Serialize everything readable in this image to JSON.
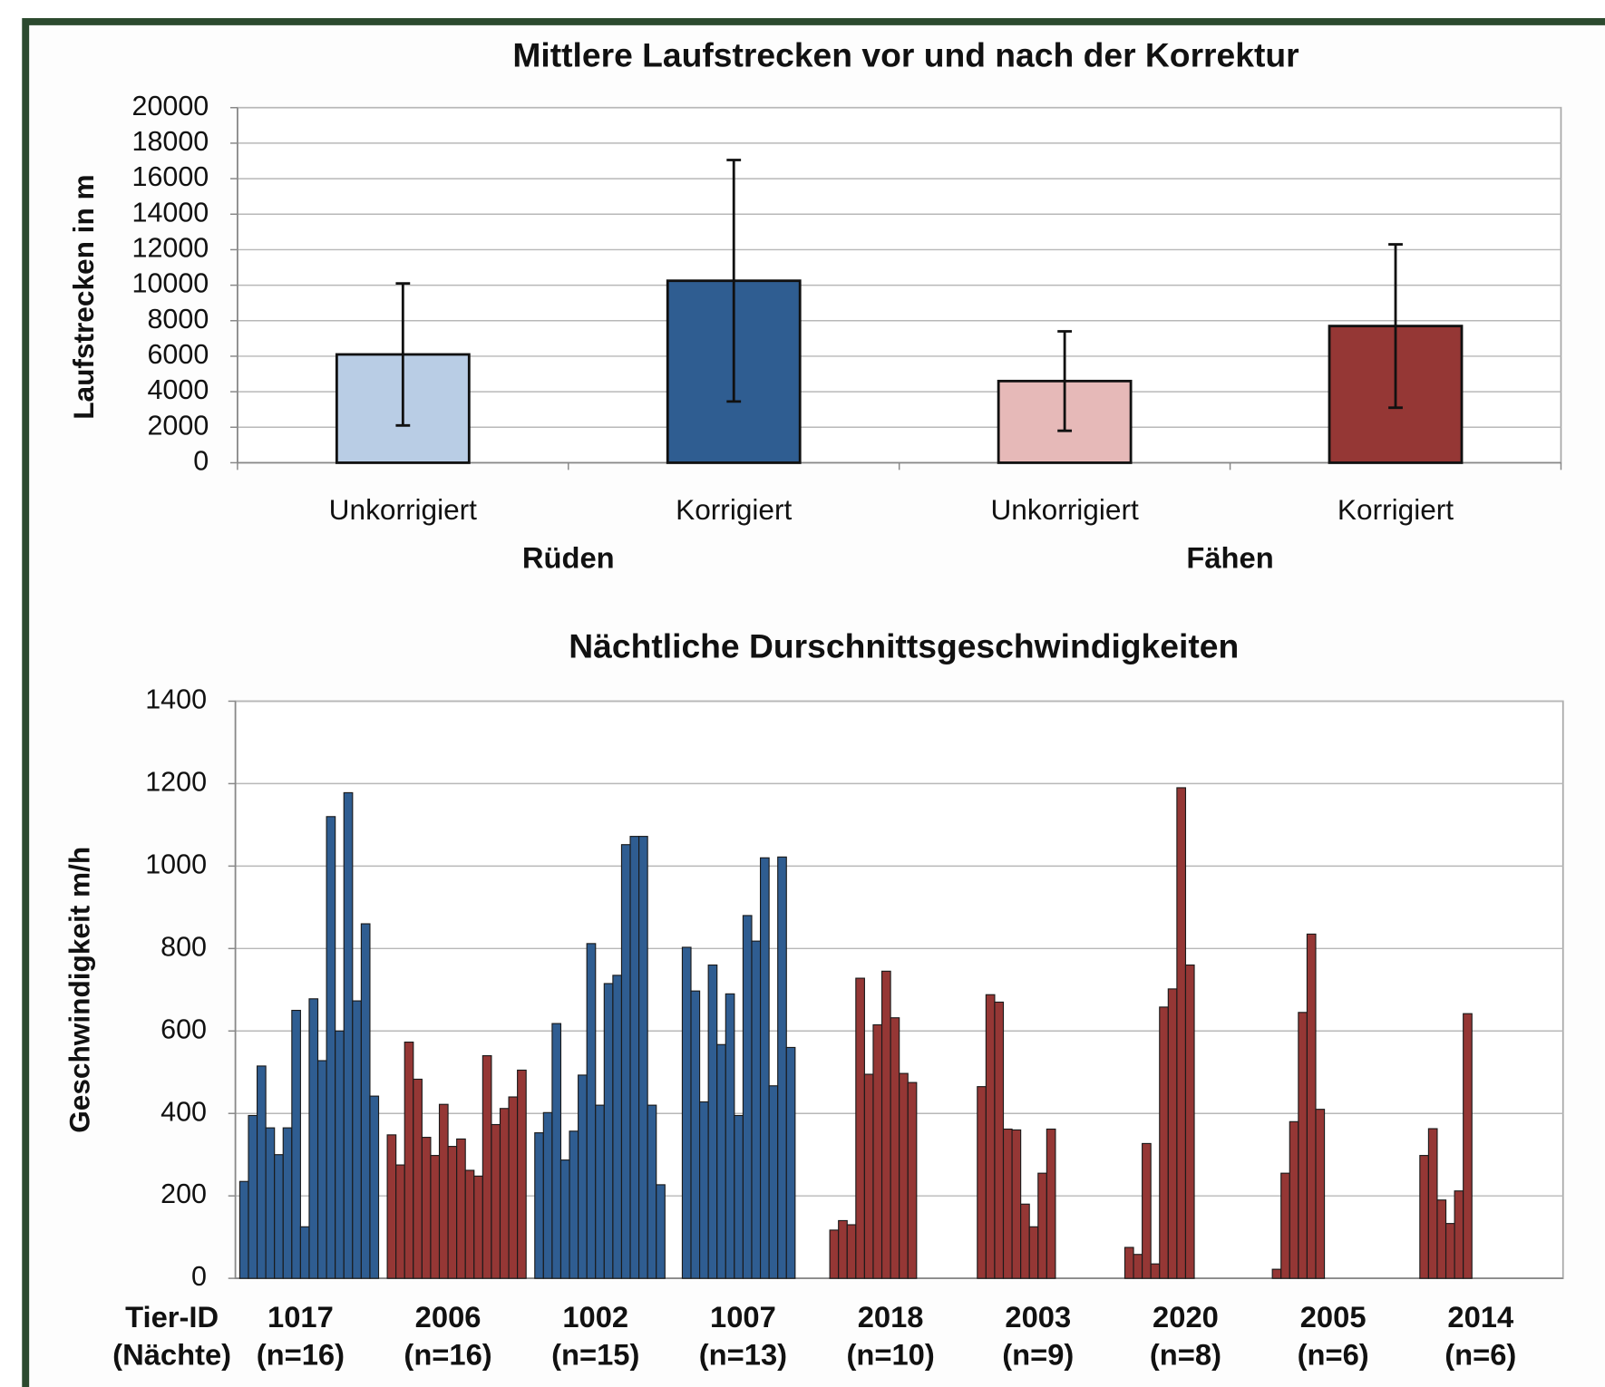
{
  "chart_data": [
    {
      "type": "bar_error",
      "title": "Mittlere Laufstrecken  vor und nach der Korrektur",
      "ylabel": "Laufstrecken in m",
      "categories": [
        "Unkorrigiert",
        "Korrigiert",
        "Unkorrigiert",
        "Korrigiert"
      ],
      "group_labels": [
        "Rüden",
        "Fähen"
      ],
      "values": [
        6100,
        10250,
        4600,
        7700
      ],
      "errors": [
        4000,
        6800,
        2800,
        4600
      ],
      "colors": [
        "#b9cde5",
        "#2f5d91",
        "#e6b9b8",
        "#953735"
      ],
      "ylim": [
        0,
        20000
      ],
      "yticks": [
        0,
        2000,
        4000,
        6000,
        8000,
        10000,
        12000,
        14000,
        16000,
        18000,
        20000
      ],
      "grid": true
    },
    {
      "type": "grouped_bar",
      "title": "Nächtliche Durschnittsgeschwindigkeiten",
      "ylabel": "Geschwindigkeit m/h",
      "xlabel": "Tier-ID",
      "xlabel2": "(Nächte)",
      "series": [
        {
          "name": "1017",
          "label": "(n=16)",
          "color": "#2f5d91",
          "values": [
            235,
            395,
            515,
            365,
            300,
            365,
            650,
            125,
            678,
            528,
            1120,
            600,
            1178,
            673,
            860,
            442
          ]
        },
        {
          "name": "2006",
          "label": "(n=16)",
          "color": "#953735",
          "values": [
            348,
            275,
            573,
            483,
            342,
            298,
            422,
            320,
            338,
            262,
            248,
            540,
            373,
            412,
            440,
            505
          ]
        },
        {
          "name": "1002",
          "label": "(n=15)",
          "color": "#2f5d91",
          "values": [
            353,
            402,
            618,
            287,
            357,
            493,
            812,
            420,
            715,
            735,
            1052,
            1072,
            1072,
            420,
            227
          ]
        },
        {
          "name": "1007",
          "label": "(n=13)",
          "color": "#2f5d91",
          "values": [
            803,
            697,
            428,
            760,
            567,
            690,
            395,
            880,
            818,
            1020,
            467,
            1022,
            560
          ]
        },
        {
          "name": "2018",
          "label": "(n=10)",
          "color": "#953735",
          "values": [
            117,
            140,
            130,
            728,
            495,
            615,
            745,
            632,
            497,
            475
          ]
        },
        {
          "name": "2003",
          "label": "(n=9)",
          "color": "#953735",
          "values": [
            465,
            688,
            670,
            362,
            360,
            180,
            125,
            255,
            362
          ]
        },
        {
          "name": "2020",
          "label": "(n=8)",
          "color": "#953735",
          "values": [
            75,
            58,
            327,
            35,
            658,
            702,
            1190,
            760
          ]
        },
        {
          "name": "2005",
          "label": "(n=6)",
          "color": "#953735",
          "values": [
            22,
            255,
            380,
            645,
            835,
            410
          ]
        },
        {
          "name": "2014",
          "label": "(n=6)",
          "color": "#953735",
          "values": [
            298,
            363,
            190,
            133,
            212,
            642
          ]
        }
      ],
      "ylim": [
        0,
        1400
      ],
      "yticks": [
        0,
        200,
        400,
        600,
        800,
        1000,
        1200,
        1400
      ],
      "grid": true
    }
  ]
}
